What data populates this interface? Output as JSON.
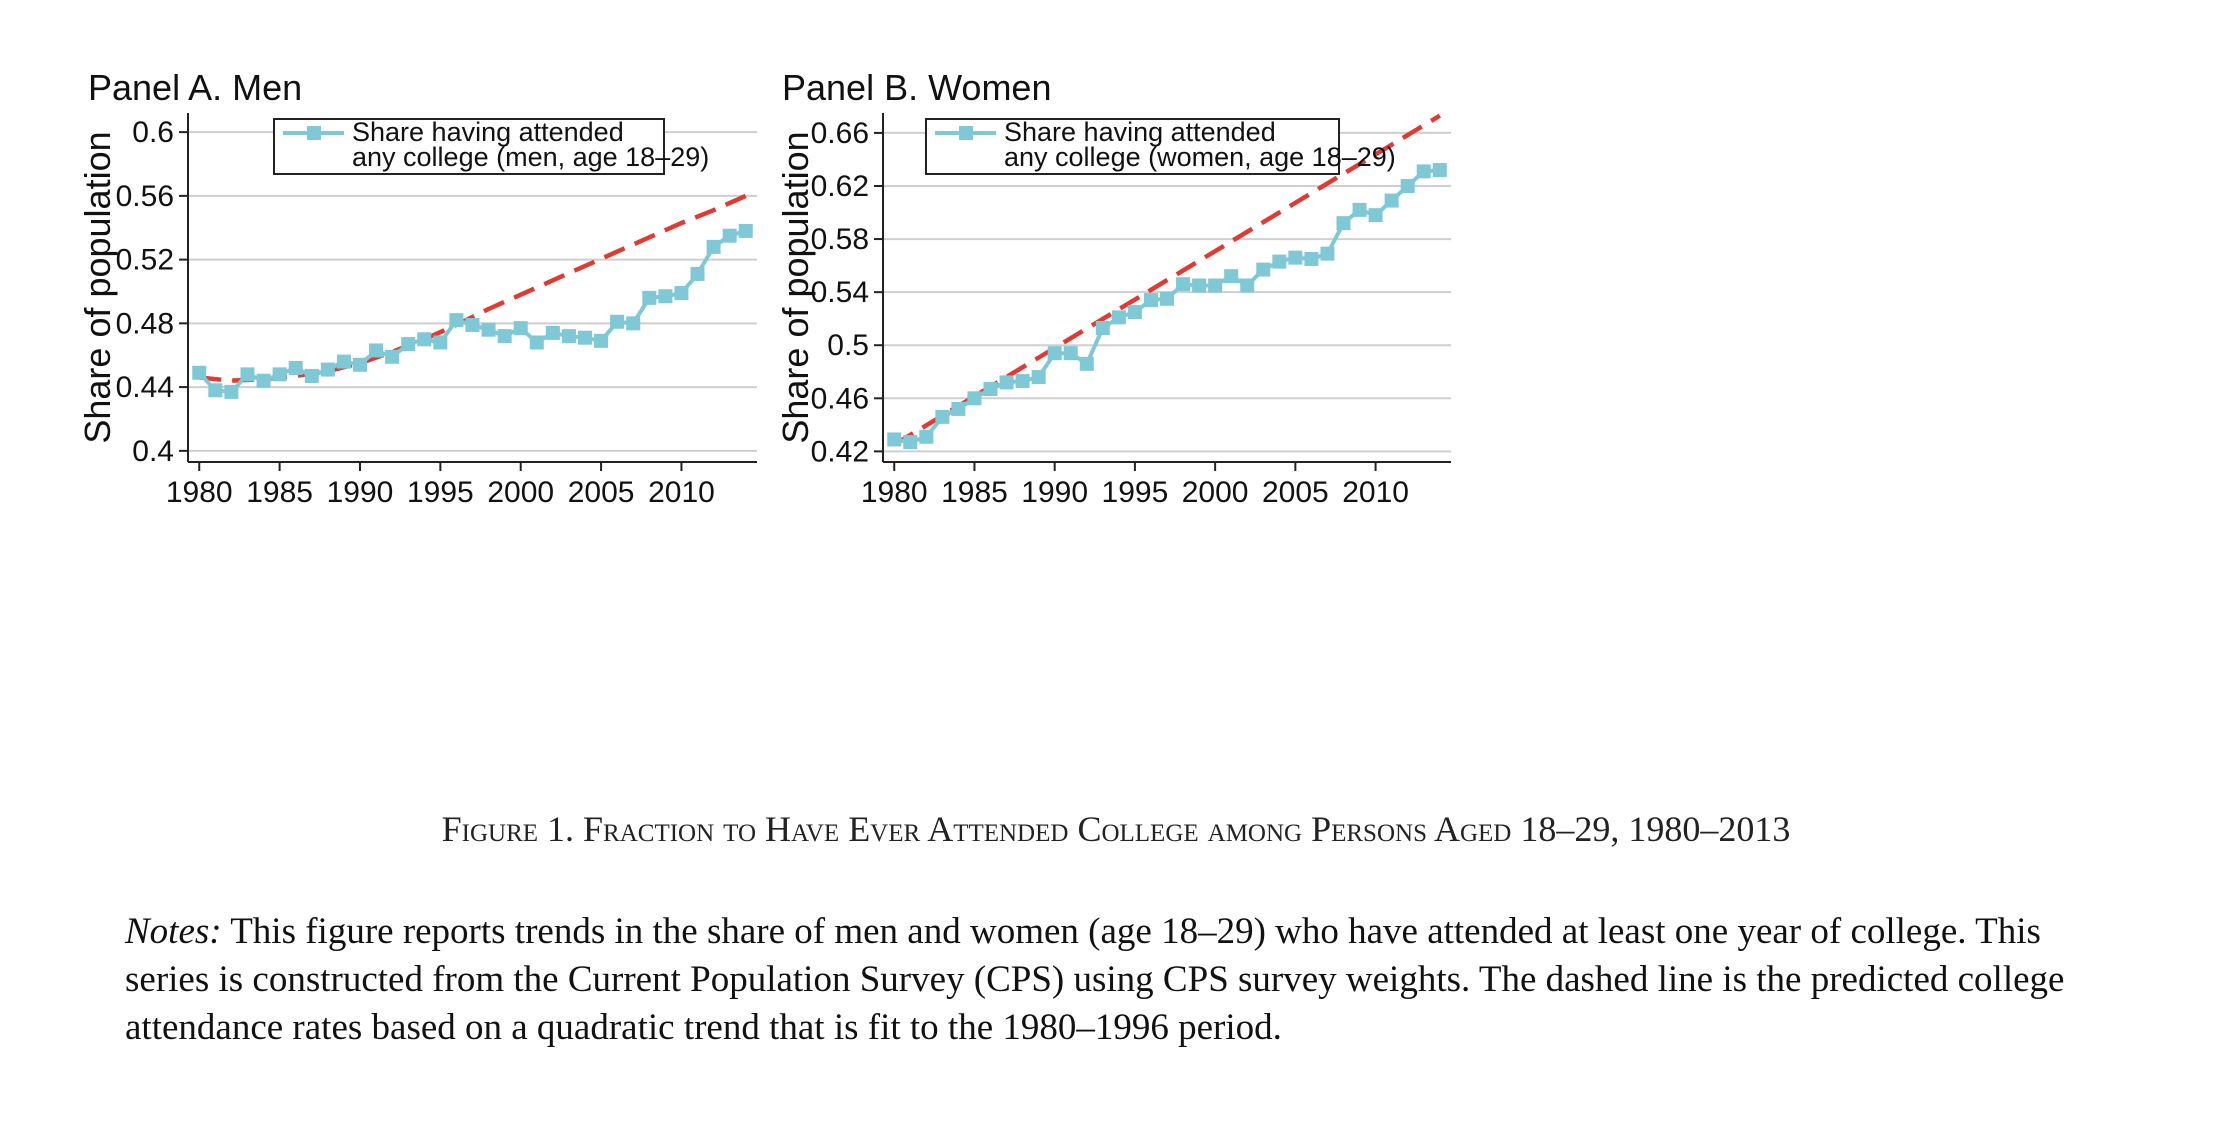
{
  "chart_data": [
    {
      "type": "line",
      "title": "Panel A. Men",
      "xlabel": "",
      "ylabel": "Share of population",
      "xlim": [
        1979.3,
        2014.7
      ],
      "ylim": [
        0.393,
        0.612
      ],
      "xticks": [
        1980,
        1985,
        1990,
        1995,
        2000,
        2005,
        2010
      ],
      "yticks": [
        0.4,
        0.44,
        0.48,
        0.52,
        0.56,
        0.6
      ],
      "ytick_labels": [
        "0.4",
        "0.44",
        "0.48",
        "0.52",
        "0.56",
        "0.6"
      ],
      "grid": true,
      "legend_position": "top-center",
      "series": [
        {
          "name": "Share having attended any college (men, age 18–29)",
          "legend_lines": [
            "Share having attended",
            "any college (men, age 18–29)"
          ],
          "color": "#7fc8d6",
          "style": "solid-square-markers",
          "x": [
            1980,
            1981,
            1982,
            1983,
            1984,
            1985,
            1986,
            1987,
            1988,
            1989,
            1990,
            1991,
            1992,
            1993,
            1994,
            1995,
            1996,
            1997,
            1998,
            1999,
            2000,
            2001,
            2002,
            2003,
            2004,
            2005,
            2006,
            2007,
            2008,
            2009,
            2010,
            2011,
            2012,
            2013,
            2014
          ],
          "y": [
            0.449,
            0.438,
            0.437,
            0.448,
            0.444,
            0.448,
            0.452,
            0.447,
            0.451,
            0.456,
            0.454,
            0.463,
            0.459,
            0.467,
            0.47,
            0.468,
            0.482,
            0.479,
            0.476,
            0.472,
            0.477,
            0.468,
            0.474,
            0.472,
            0.471,
            0.469,
            0.481,
            0.48,
            0.496,
            0.497,
            0.499,
            0.511,
            0.528,
            0.535,
            0.538
          ]
        },
        {
          "name": "",
          "color": "#e03a32",
          "style": "dashed",
          "x": [
            1980,
            1982,
            1984,
            1986,
            1988,
            1990,
            1992,
            1994,
            1996,
            1998,
            2000,
            2002,
            2004,
            2006,
            2008,
            2010,
            2012,
            2014
          ],
          "y": [
            0.446,
            0.444,
            0.445,
            0.447,
            0.45,
            0.455,
            0.462,
            0.47,
            0.479,
            0.489,
            0.498,
            0.507,
            0.516,
            0.525,
            0.534,
            0.543,
            0.551,
            0.56
          ]
        }
      ]
    },
    {
      "type": "line",
      "title": "Panel B. Women",
      "xlabel": "",
      "ylabel": "Share of population",
      "xlim": [
        1979.3,
        2014.7
      ],
      "ylim": [
        0.412,
        0.675
      ],
      "xticks": [
        1980,
        1985,
        1990,
        1995,
        2000,
        2005,
        2010
      ],
      "yticks": [
        0.42,
        0.46,
        0.5,
        0.54,
        0.58,
        0.62,
        0.66
      ],
      "ytick_labels": [
        "0.42",
        "0.46",
        "0.5",
        "0.54",
        "0.58",
        "0.62",
        "0.66"
      ],
      "grid": true,
      "legend_position": "top-center",
      "series": [
        {
          "name": "Share having attended any college (women, age 18–29)",
          "legend_lines": [
            "Share having attended",
            "any college (women, age 18–29)"
          ],
          "color": "#7fc8d6",
          "style": "solid-square-markers",
          "x": [
            1980,
            1981,
            1982,
            1983,
            1984,
            1985,
            1986,
            1987,
            1988,
            1989,
            1990,
            1991,
            1992,
            1993,
            1994,
            1995,
            1996,
            1997,
            1998,
            1999,
            2000,
            2001,
            2002,
            2003,
            2004,
            2005,
            2006,
            2007,
            2008,
            2009,
            2010,
            2011,
            2012,
            2013,
            2014
          ],
          "y": [
            0.429,
            0.427,
            0.431,
            0.446,
            0.452,
            0.46,
            0.467,
            0.472,
            0.473,
            0.476,
            0.494,
            0.494,
            0.486,
            0.513,
            0.521,
            0.525,
            0.534,
            0.535,
            0.546,
            0.545,
            0.545,
            0.552,
            0.545,
            0.557,
            0.563,
            0.566,
            0.565,
            0.569,
            0.592,
            0.602,
            0.598,
            0.609,
            0.62,
            0.631,
            0.632
          ]
        },
        {
          "name": "",
          "color": "#e03a32",
          "style": "dashed",
          "x": [
            1980,
            2014
          ],
          "y": [
            0.425,
            0.673
          ]
        }
      ]
    }
  ],
  "caption": {
    "label": "Figure 1. ",
    "text": "Fraction to Have Ever Attended College among Persons Aged",
    "suffix": " 18–29, 1980–2013"
  },
  "notes": {
    "lead": "Notes:",
    "text": " This figure reports trends in the share of men and women (age 18–29) who have attended at least one year of college. This series is constructed from the Current Population Survey (CPS) using CPS survey weights. The dashed line is the predicted college attendance rates based on a quadratic trend that is fit to the 1980–1996 period."
  }
}
